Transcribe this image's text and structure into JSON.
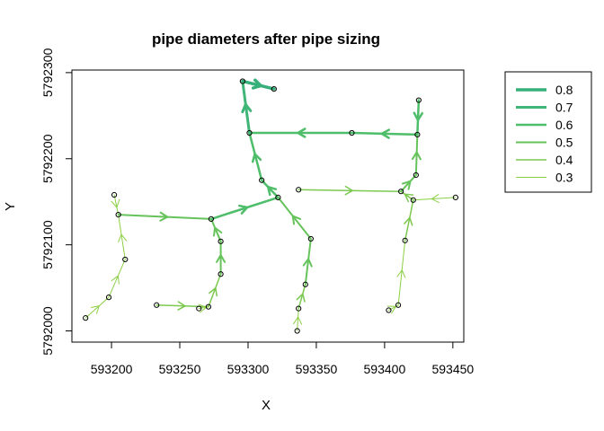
{
  "chart_data": {
    "type": "network",
    "title": "pipe diameters after pipe sizing",
    "xlabel": "X",
    "ylabel": "Y",
    "xlim": [
      593171,
      593458
    ],
    "ylim": [
      5791987,
      5792303
    ],
    "xticks": [
      593200,
      593250,
      593300,
      593350,
      593400,
      593450
    ],
    "xtick_labels": [
      "593200",
      "593250",
      "593300",
      "593350",
      "593400",
      "593450"
    ],
    "yticks": [
      5792000,
      5792100,
      5792200,
      5792300
    ],
    "ytick_labels": [
      "5792000",
      "5792100",
      "5792200",
      "5792300"
    ],
    "legend": {
      "placement": "right",
      "entries": [
        {
          "label": "0.8",
          "value": 0.8,
          "color": "#36b07a"
        },
        {
          "label": "0.7",
          "value": 0.7,
          "color": "#3fb677"
        },
        {
          "label": "0.6",
          "value": 0.6,
          "color": "#4fbe6a"
        },
        {
          "label": "0.5",
          "value": 0.5,
          "color": "#66c35b"
        },
        {
          "label": "0.4",
          "value": 0.4,
          "color": "#7bc94f"
        },
        {
          "label": "0.3",
          "value": 0.3,
          "color": "#8ccf44"
        }
      ]
    },
    "nodes": [
      {
        "id": "A",
        "x": 593181,
        "y": 5792015
      },
      {
        "id": "B",
        "x": 593198,
        "y": 5792039
      },
      {
        "id": "C",
        "x": 593210,
        "y": 5792083
      },
      {
        "id": "D",
        "x": 593202,
        "y": 5792158
      },
      {
        "id": "E",
        "x": 593205,
        "y": 5792135
      },
      {
        "id": "F",
        "x": 593233,
        "y": 5792030
      },
      {
        "id": "G",
        "x": 593264,
        "y": 5792026
      },
      {
        "id": "H",
        "x": 593271,
        "y": 5792028
      },
      {
        "id": "I",
        "x": 593280,
        "y": 5792066
      },
      {
        "id": "J",
        "x": 593280,
        "y": 5792104
      },
      {
        "id": "K",
        "x": 593273,
        "y": 5792130
      },
      {
        "id": "L",
        "x": 593322,
        "y": 5792155
      },
      {
        "id": "M",
        "x": 593310,
        "y": 5792175
      },
      {
        "id": "N",
        "x": 593301,
        "y": 5792230
      },
      {
        "id": "O",
        "x": 593296,
        "y": 5792290
      },
      {
        "id": "P",
        "x": 593319,
        "y": 5792281
      },
      {
        "id": "Q",
        "x": 593376,
        "y": 5792230
      },
      {
        "id": "R",
        "x": 593424,
        "y": 5792228
      },
      {
        "id": "S",
        "x": 593425,
        "y": 5792268
      },
      {
        "id": "T",
        "x": 593423,
        "y": 5792181
      },
      {
        "id": "U",
        "x": 593412,
        "y": 5792162
      },
      {
        "id": "V",
        "x": 593337,
        "y": 5792164
      },
      {
        "id": "W",
        "x": 593452,
        "y": 5792155
      },
      {
        "id": "X1",
        "x": 593421,
        "y": 5792152
      },
      {
        "id": "Y1",
        "x": 593415,
        "y": 5792105
      },
      {
        "id": "Z",
        "x": 593410,
        "y": 5792030
      },
      {
        "id": "AA",
        "x": 593403,
        "y": 5792024
      },
      {
        "id": "AB",
        "x": 593346,
        "y": 5792107
      },
      {
        "id": "AC",
        "x": 593342,
        "y": 5792054
      },
      {
        "id": "AD",
        "x": 593337,
        "y": 5792026
      },
      {
        "id": "AE",
        "x": 593336,
        "y": 5792000
      }
    ],
    "pipes": [
      {
        "from": "A",
        "to": "B",
        "diameter": 0.3
      },
      {
        "from": "B",
        "to": "C",
        "diameter": 0.3
      },
      {
        "from": "D",
        "to": "E",
        "diameter": 0.3
      },
      {
        "from": "C",
        "to": "E",
        "diameter": 0.3
      },
      {
        "from": "E",
        "to": "K",
        "diameter": 0.5
      },
      {
        "from": "F",
        "to": "H",
        "diameter": 0.4
      },
      {
        "from": "G",
        "to": "H",
        "diameter": 0.3
      },
      {
        "from": "H",
        "to": "I",
        "diameter": 0.4
      },
      {
        "from": "I",
        "to": "J",
        "diameter": 0.5
      },
      {
        "from": "J",
        "to": "K",
        "diameter": 0.5
      },
      {
        "from": "K",
        "to": "L",
        "diameter": 0.6
      },
      {
        "from": "AE",
        "to": "AD",
        "diameter": 0.3
      },
      {
        "from": "AD",
        "to": "AC",
        "diameter": 0.4
      },
      {
        "from": "AC",
        "to": "AB",
        "diameter": 0.5
      },
      {
        "from": "AB",
        "to": "L",
        "diameter": 0.5
      },
      {
        "from": "L",
        "to": "M",
        "diameter": 0.6
      },
      {
        "from": "M",
        "to": "N",
        "diameter": 0.6
      },
      {
        "from": "V",
        "to": "U",
        "diameter": 0.4
      },
      {
        "from": "W",
        "to": "X1",
        "diameter": 0.3
      },
      {
        "from": "AA",
        "to": "Z",
        "diameter": 0.3
      },
      {
        "from": "Z",
        "to": "Y1",
        "diameter": 0.3
      },
      {
        "from": "Y1",
        "to": "X1",
        "diameter": 0.4
      },
      {
        "from": "X1",
        "to": "U",
        "diameter": 0.4
      },
      {
        "from": "U",
        "to": "T",
        "diameter": 0.5
      },
      {
        "from": "T",
        "to": "R",
        "diameter": 0.5
      },
      {
        "from": "S",
        "to": "R",
        "diameter": 0.6
      },
      {
        "from": "R",
        "to": "Q",
        "diameter": 0.6
      },
      {
        "from": "Q",
        "to": "N",
        "diameter": 0.6
      },
      {
        "from": "N",
        "to": "O",
        "diameter": 0.7
      },
      {
        "from": "O",
        "to": "P",
        "diameter": 0.8
      }
    ]
  }
}
